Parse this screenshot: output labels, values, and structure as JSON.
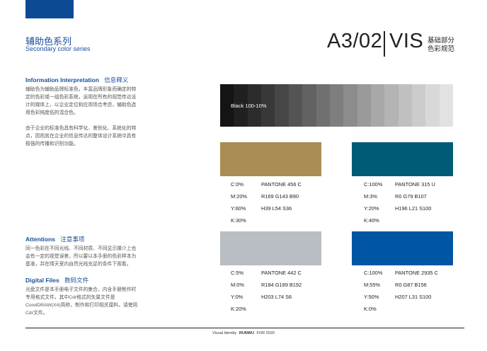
{
  "header": {
    "title_cn": "辅助色系列",
    "title_en": "Secondary color series",
    "code": "A3/02",
    "code_vis": "VIS",
    "sub_line1": "基础部分",
    "sub_line2": "色彩规范"
  },
  "info": {
    "heading_en": "Information Interpretation",
    "heading_cn": "信息释义",
    "para1": "辅助色为辅助品牌标准色，丰富品牌形象而确定的特定的色彩或一组色彩系统，运用在所有的视觉传达设计的媒体上，以企业定位和应用场合考虑，辅助色选用色彩纯度低的混合色。",
    "para2": "由于企业的标准色具有科学化、差别化、系统化的特点，因而其在企业的信息传达的整体设计系统中具有极强的传播和识别功能。"
  },
  "attentions": {
    "heading_en": "Attentions",
    "heading_cn": "注意事项",
    "para": "同一色彩在不同光线、不同材质、不同显示媒介上也会有一定的视觉误差，所以要以本手册的色彩样本为基准，并在晴天室内自然光线充足的条件下观看。"
  },
  "digital": {
    "heading_en": "Digital Files",
    "heading_cn": "数码文件",
    "para": "光盘文件是本手册电子文件的集合，内含手册制作时专用格式文件，其中Cdr格式的矢量文件是CorelDRAW(X4)简称，制作和打印相关厘料，请使用Cdr文件。"
  },
  "gray_label": "Black 100-10%",
  "gray_steps": [
    "#141414",
    "#202020",
    "#2c2c2c",
    "#383838",
    "#464646",
    "#545454",
    "#626262",
    "#707070",
    "#7e7e7e",
    "#8c8c8c",
    "#9a9a9a",
    "#a8a8a8",
    "#b4b4b4",
    "#c0c0c0",
    "#cccccc",
    "#d8d8d8",
    "#e2e2e2"
  ],
  "swatches": [
    {
      "color": "#a98d54",
      "c": "C:0%",
      "m": "M:20%",
      "y": "Y:60%",
      "k": "K:30%",
      "pantone": "PANTONE 456 C",
      "rgb": "R169 G143 B90",
      "hls": "H39 L54 S36"
    },
    {
      "color": "#005b77",
      "c": "C:100%",
      "m": "M:3%",
      "y": "Y:20%",
      "k": "K:40%",
      "pantone": "PANTONE 315 U",
      "rgb": "R0 G79 B107",
      "hls": "H196 L21 S100"
    },
    {
      "color": "#b8bec3",
      "c": "C:5%",
      "m": "M:0%",
      "y": "Y:0%",
      "k": "K:20%",
      "pantone": "PANTONE 442 C",
      "rgb": "R184 G189 B192",
      "hls": "H203 L74 S6"
    },
    {
      "color": "#0056a3",
      "c": "C:100%",
      "m": "M:55%",
      "y": "Y:50%",
      "k": "K:0%",
      "pantone": "PANTONE 2935 C",
      "rgb": "R0 G87 B156",
      "hls": "H207 L31 S100"
    }
  ],
  "footer": {
    "left": "Visual Identity",
    "brand": "RUNWU",
    "right": "FOR 2020"
  }
}
